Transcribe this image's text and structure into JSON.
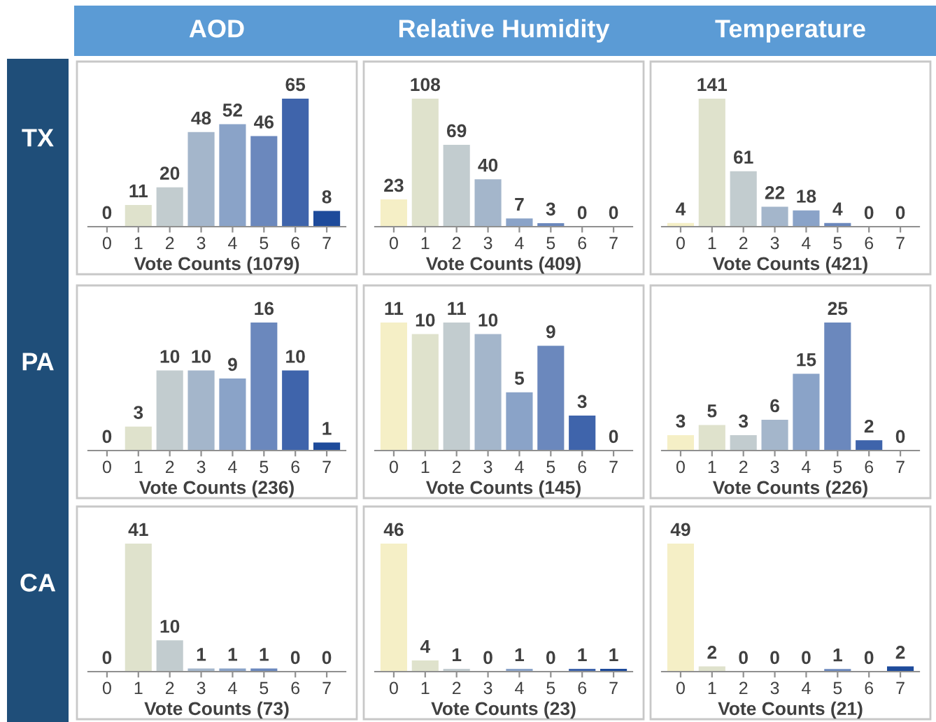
{
  "chart_data": [
    {
      "type": "bar",
      "title": "AOD",
      "ylabel": "TX",
      "xlabel": "Vote Counts (1079)",
      "categories": [
        "0",
        "1",
        "2",
        "3",
        "4",
        "5",
        "6",
        "7"
      ],
      "values": [
        0,
        11,
        20,
        48,
        52,
        46,
        65,
        8
      ],
      "colors": [
        "#f5efc6",
        "#dfe2cc",
        "#c2cccf",
        "#a4b6cb",
        "#8aa3c8",
        "#6b88bd",
        "#3f64ab",
        "#1e4b9b"
      ],
      "data_labels": true,
      "grid": false,
      "legend": false
    },
    {
      "type": "bar",
      "title": "Relative Humidity",
      "xlabel": "Vote Counts (409)",
      "categories": [
        "0",
        "1",
        "2",
        "3",
        "4",
        "5",
        "6",
        "7"
      ],
      "values": [
        23,
        108,
        69,
        40,
        7,
        3,
        0,
        0
      ],
      "colors": [
        "#f5efc6",
        "#dfe2cc",
        "#c2cccf",
        "#a4b6cb",
        "#8aa3c8",
        "#6b88bd",
        "#3f64ab",
        "#1e4b9b"
      ],
      "data_labels": true,
      "grid": false,
      "legend": false
    },
    {
      "type": "bar",
      "title": "Temperature",
      "xlabel": "Vote Counts (421)",
      "categories": [
        "0",
        "1",
        "2",
        "3",
        "4",
        "5",
        "6",
        "7"
      ],
      "values": [
        4,
        141,
        61,
        22,
        18,
        4,
        0,
        0
      ],
      "colors": [
        "#f5efc6",
        "#dfe2cc",
        "#c2cccf",
        "#a4b6cb",
        "#8aa3c8",
        "#6b88bd",
        "#3f64ab",
        "#1e4b9b"
      ],
      "data_labels": true,
      "grid": false,
      "legend": false
    },
    {
      "type": "bar",
      "ylabel": "PA",
      "xlabel": "Vote Counts (236)",
      "categories": [
        "0",
        "1",
        "2",
        "3",
        "4",
        "5",
        "6",
        "7"
      ],
      "values": [
        0,
        3,
        10,
        10,
        9,
        16,
        10,
        1
      ],
      "colors": [
        "#f5efc6",
        "#dfe2cc",
        "#c2cccf",
        "#a4b6cb",
        "#8aa3c8",
        "#6b88bd",
        "#3f64ab",
        "#1e4b9b"
      ],
      "data_labels": true,
      "grid": false,
      "legend": false
    },
    {
      "type": "bar",
      "xlabel": "Vote Counts (145)",
      "categories": [
        "0",
        "1",
        "2",
        "3",
        "4",
        "5",
        "6",
        "7"
      ],
      "values": [
        11,
        10,
        11,
        10,
        5,
        9,
        3,
        0
      ],
      "colors": [
        "#f5efc6",
        "#dfe2cc",
        "#c2cccf",
        "#a4b6cb",
        "#8aa3c8",
        "#6b88bd",
        "#3f64ab",
        "#1e4b9b"
      ],
      "data_labels": true,
      "grid": false,
      "legend": false
    },
    {
      "type": "bar",
      "xlabel": "Vote Counts (226)",
      "categories": [
        "0",
        "1",
        "2",
        "3",
        "4",
        "5",
        "6",
        "7"
      ],
      "values": [
        3,
        5,
        3,
        6,
        15,
        25,
        2,
        0
      ],
      "colors": [
        "#f5efc6",
        "#dfe2cc",
        "#c2cccf",
        "#a4b6cb",
        "#8aa3c8",
        "#6b88bd",
        "#3f64ab",
        "#1e4b9b"
      ],
      "data_labels": true,
      "grid": false,
      "legend": false
    },
    {
      "type": "bar",
      "ylabel": "CA",
      "xlabel": "Vote Counts (73)",
      "categories": [
        "0",
        "1",
        "2",
        "3",
        "4",
        "5",
        "6",
        "7"
      ],
      "values": [
        0,
        41,
        10,
        1,
        1,
        1,
        0,
        0
      ],
      "colors": [
        "#f5efc6",
        "#dfe2cc",
        "#c2cccf",
        "#a4b6cb",
        "#8aa3c8",
        "#6b88bd",
        "#3f64ab",
        "#1e4b9b"
      ],
      "data_labels": true,
      "grid": false,
      "legend": false
    },
    {
      "type": "bar",
      "xlabel": "Vote Counts (23)",
      "categories": [
        "0",
        "1",
        "2",
        "3",
        "4",
        "5",
        "6",
        "7"
      ],
      "values": [
        46,
        4,
        1,
        0,
        1,
        0,
        1,
        1
      ],
      "colors": [
        "#f5efc6",
        "#dfe2cc",
        "#c2cccf",
        "#a4b6cb",
        "#8aa3c8",
        "#6b88bd",
        "#3f64ab",
        "#1e4b9b"
      ],
      "data_labels": true,
      "grid": false,
      "legend": false
    },
    {
      "type": "bar",
      "xlabel": "Vote Counts (21)",
      "categories": [
        "0",
        "1",
        "2",
        "3",
        "4",
        "5",
        "6",
        "7"
      ],
      "values": [
        49,
        2,
        0,
        0,
        0,
        1,
        0,
        2
      ],
      "colors": [
        "#f5efc6",
        "#dfe2cc",
        "#c2cccf",
        "#a4b6cb",
        "#8aa3c8",
        "#6b88bd",
        "#3f64ab",
        "#1e4b9b"
      ],
      "data_labels": true,
      "grid": false,
      "legend": false
    }
  ]
}
